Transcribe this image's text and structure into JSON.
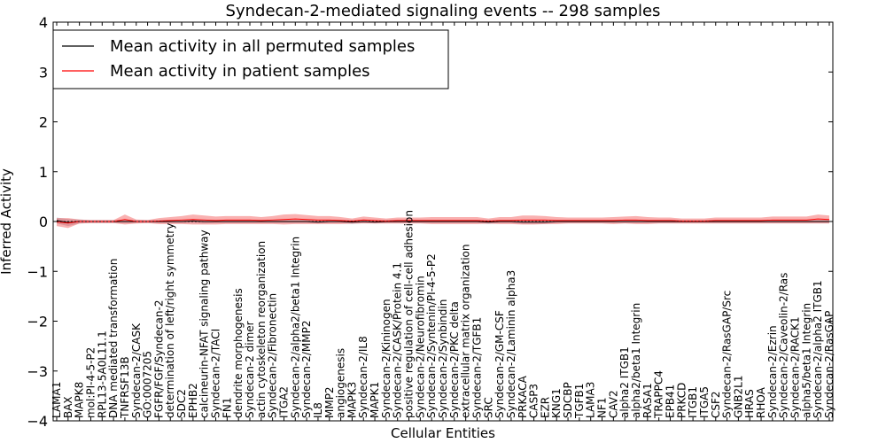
{
  "chart_data": {
    "type": "line",
    "title": "Syndecan-2-mediated signaling events -- 298 samples",
    "xlabel": "Cellular Entities",
    "ylabel": "Inferred Activity",
    "ylim": [
      -4,
      4
    ],
    "yticks": [
      -4,
      -3,
      -2,
      -1,
      0,
      1,
      2,
      3,
      4
    ],
    "ytick_labels": [
      "−4",
      "−3",
      "−2",
      "−1",
      "0",
      "1",
      "2",
      "3",
      "4"
    ],
    "grid": false,
    "legend_position": "top-left",
    "categories": [
      "LAMA1",
      "BAX",
      "MAPK8",
      "mol:PI-4-5-P2",
      "RPL13-5A0L11.1",
      "DNA mediated transformation",
      "TNFRSF13B",
      "Syndecan-2/CASK",
      "GO:0007205",
      "FGFR/FGF/Syndecan-2",
      "determination of left/right symmetry",
      "SDC2",
      "EPHB2",
      "calcineurin-NFAT signaling pathway",
      "Syndecan-2/TACI",
      "FN1",
      "dendrite morphogenesis",
      "Syndecan-2 dimer",
      "actin cytoskeleton reorganization",
      "Syndecan-2/Fibronectin",
      "ITGA2",
      "Syndecan-2/alpha2/beta1 Integrin",
      "Syndecan-2/MMP2",
      "IL8",
      "MMP2",
      "angiogenesis",
      "MAPK3",
      "Syndecan-2/IL8",
      "MAPK1",
      "Syndecan-2/Kininogen",
      "Syndecan-2/CASK/Protein 4.1",
      "positive regulation of cell-cell adhesion",
      "Syndecan-2/Neurofibromin",
      "Syndecan-2/Syntenin/PI-4-5-P2",
      "Syndecan-2/Synbindin",
      "Syndecan-2/PKC delta",
      "extracellular matrix organization",
      "Syndecan-2/TGFB1",
      "SRC",
      "Syndecan-2/GM-CSF",
      "Syndecan-2/Laminin alpha3",
      "PRKACA",
      "CASP3",
      "EZR",
      "KNG1",
      "SDCBP",
      "TGFB1",
      "LAMA3",
      "NF1",
      "CAV2",
      "alpha2 ITGB1",
      "alpha2/beta1 Integrin",
      "RASA1",
      "TRAPPC4",
      "EPB41",
      "PRKCD",
      "ITGB1",
      "ITGA5",
      "CSF2",
      "Syndecan-2/RasGAP/Src",
      "GNB2L1",
      "HRAS",
      "RHOA",
      "Syndecan-2/Ezrin",
      "Syndecan-2/Caveolin-2/Ras",
      "Syndecan-2/RACK1",
      "alpha5/beta1 Integrin",
      "Syndecan-2/alpha2 ITGB1",
      "Syndecan-2/RasGAP"
    ],
    "series": [
      {
        "name": "Mean activity in all permuted samples",
        "color": "#000000",
        "values": [
          0.02,
          -0.02,
          0.0,
          0.0,
          0.0,
          0.0,
          0.0,
          0.0,
          0.0,
          0.0,
          0.0,
          0.0,
          0.01,
          0.0,
          0.0,
          0.0,
          0.0,
          0.0,
          0.0,
          0.0,
          0.0,
          0.0,
          0.0,
          -0.01,
          0.0,
          0.0,
          -0.01,
          0.0,
          -0.01,
          0.0,
          0.0,
          0.0,
          0.0,
          0.0,
          0.0,
          0.0,
          0.0,
          0.0,
          -0.01,
          0.0,
          0.0,
          -0.01,
          -0.01,
          -0.01,
          0.0,
          0.0,
          0.0,
          0.0,
          0.0,
          0.0,
          0.0,
          0.0,
          0.0,
          0.0,
          0.0,
          0.0,
          0.0,
          0.0,
          0.0,
          0.0,
          0.0,
          0.0,
          0.0,
          0.0,
          0.0,
          0.0,
          0.0,
          0.0,
          0.0
        ],
        "band": [
          0.06,
          0.07,
          0.04,
          0.03,
          0.03,
          0.03,
          0.03,
          0.03,
          0.03,
          0.03,
          0.03,
          0.03,
          0.04,
          0.04,
          0.03,
          0.03,
          0.03,
          0.03,
          0.03,
          0.03,
          0.03,
          0.03,
          0.03,
          0.03,
          0.03,
          0.03,
          0.04,
          0.03,
          0.03,
          0.03,
          0.03,
          0.03,
          0.03,
          0.03,
          0.03,
          0.03,
          0.03,
          0.03,
          0.04,
          0.03,
          0.03,
          0.04,
          0.04,
          0.04,
          0.03,
          0.03,
          0.03,
          0.03,
          0.03,
          0.03,
          0.03,
          0.03,
          0.03,
          0.03,
          0.03,
          0.03,
          0.03,
          0.03,
          0.03,
          0.03,
          0.03,
          0.03,
          0.03,
          0.03,
          0.03,
          0.03,
          0.03,
          0.03,
          0.03
        ]
      },
      {
        "name": "Mean activity in patient samples",
        "color": "#ff0000",
        "values": [
          -0.01,
          -0.03,
          0.0,
          0.0,
          0.0,
          0.0,
          0.04,
          0.0,
          0.0,
          0.01,
          0.02,
          0.03,
          0.04,
          0.03,
          0.02,
          0.03,
          0.03,
          0.03,
          0.02,
          0.03,
          0.04,
          0.05,
          0.04,
          0.03,
          0.03,
          0.02,
          0.01,
          0.03,
          0.02,
          0.01,
          0.02,
          0.02,
          0.02,
          0.02,
          0.02,
          0.02,
          0.02,
          0.02,
          0.01,
          0.02,
          0.02,
          0.03,
          0.03,
          0.03,
          0.02,
          0.02,
          0.02,
          0.02,
          0.02,
          0.02,
          0.03,
          0.03,
          0.02,
          0.02,
          0.02,
          0.01,
          0.01,
          0.01,
          0.02,
          0.02,
          0.02,
          0.02,
          0.02,
          0.03,
          0.03,
          0.03,
          0.03,
          0.05,
          0.04
        ],
        "band": [
          0.08,
          0.1,
          0.04,
          0.03,
          0.03,
          0.03,
          0.1,
          0.04,
          0.03,
          0.06,
          0.07,
          0.08,
          0.1,
          0.09,
          0.08,
          0.08,
          0.08,
          0.08,
          0.07,
          0.08,
          0.1,
          0.1,
          0.09,
          0.08,
          0.08,
          0.07,
          0.05,
          0.07,
          0.06,
          0.05,
          0.06,
          0.06,
          0.06,
          0.07,
          0.07,
          0.07,
          0.07,
          0.07,
          0.05,
          0.07,
          0.07,
          0.09,
          0.09,
          0.08,
          0.07,
          0.06,
          0.06,
          0.06,
          0.06,
          0.07,
          0.07,
          0.08,
          0.07,
          0.06,
          0.06,
          0.05,
          0.05,
          0.05,
          0.06,
          0.06,
          0.06,
          0.06,
          0.06,
          0.07,
          0.07,
          0.07,
          0.07,
          0.09,
          0.08
        ]
      }
    ]
  }
}
